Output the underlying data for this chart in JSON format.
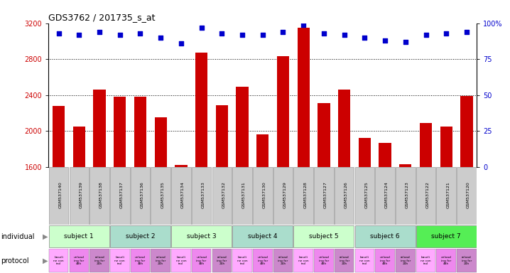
{
  "title": "GDS3762 / 201735_s_at",
  "samples": [
    "GSM537140",
    "GSM537139",
    "GSM537138",
    "GSM537137",
    "GSM537136",
    "GSM537135",
    "GSM537134",
    "GSM537133",
    "GSM537132",
    "GSM537131",
    "GSM537130",
    "GSM537129",
    "GSM537128",
    "GSM537127",
    "GSM537126",
    "GSM537125",
    "GSM537124",
    "GSM537123",
    "GSM537122",
    "GSM537121",
    "GSM537120"
  ],
  "bar_values": [
    2280,
    2050,
    2460,
    2380,
    2380,
    2150,
    1620,
    2870,
    2290,
    2490,
    1960,
    2830,
    3150,
    2310,
    2460,
    1920,
    1870,
    1630,
    2090,
    2050,
    2390
  ],
  "percentile_values": [
    93,
    92,
    94,
    92,
    93,
    90,
    86,
    97,
    93,
    92,
    92,
    94,
    99,
    93,
    92,
    90,
    88,
    87,
    92,
    93,
    94
  ],
  "ylim_left": [
    1600,
    3200
  ],
  "ylim_right": [
    0,
    100
  ],
  "y_ticks_left": [
    1600,
    2000,
    2400,
    2800,
    3200
  ],
  "y_ticks_right": [
    0,
    25,
    50,
    75,
    100
  ],
  "bar_color": "#cc0000",
  "dot_color": "#0000cc",
  "subjects": [
    {
      "label": "subject 1",
      "start": 0,
      "end": 3
    },
    {
      "label": "subject 2",
      "start": 3,
      "end": 6
    },
    {
      "label": "subject 3",
      "start": 6,
      "end": 9
    },
    {
      "label": "subject 4",
      "start": 9,
      "end": 12
    },
    {
      "label": "subject 5",
      "start": 12,
      "end": 15
    },
    {
      "label": "subject 6",
      "start": 15,
      "end": 18
    },
    {
      "label": "subject 7",
      "start": 18,
      "end": 21
    }
  ],
  "subject_colors": [
    "#ccffcc",
    "#aaddcc",
    "#ccffcc",
    "#aaddcc",
    "#ccffcc",
    "#aaddcc",
    "#55ee55"
  ],
  "prot_colors": [
    "#ffaaff",
    "#ee88ee",
    "#cc88cc"
  ],
  "prot_texts": [
    "baseli\nne con\ntrol",
    "unload\ning for\n48h",
    "reload\ning for\n24h"
  ],
  "label_row_color": "#cccccc",
  "grid_dotted_at": [
    2000,
    2400,
    2800
  ]
}
